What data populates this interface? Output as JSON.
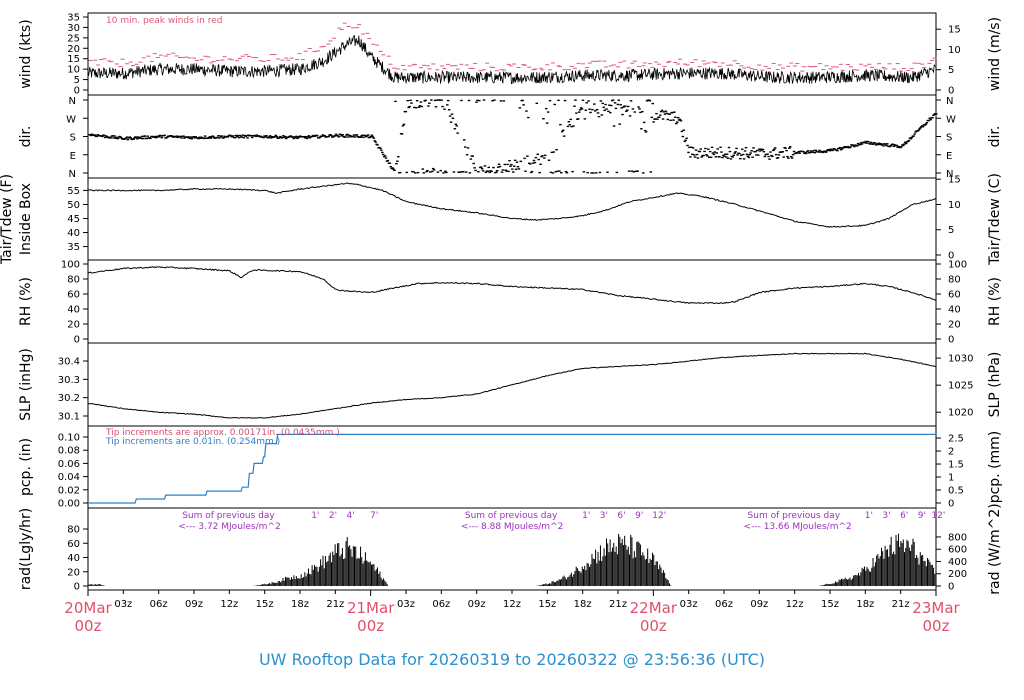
{
  "title": "UW Rooftop Data for 20260319  to  20260322 @ 23:56:36  (UTC)",
  "x_axis": {
    "tick_labels": [
      "03z",
      "06z",
      "09z",
      "12z",
      "15z",
      "18z",
      "21z",
      "03z",
      "06z",
      "09z",
      "12z",
      "15z",
      "18z",
      "21z",
      "03z",
      "06z",
      "09z",
      "12z",
      "15z",
      "18z",
      "21z"
    ],
    "tick_hours": [
      3,
      6,
      9,
      12,
      15,
      18,
      21,
      27,
      30,
      33,
      36,
      39,
      42,
      45,
      51,
      54,
      57,
      60,
      63,
      66,
      69
    ],
    "date_labels": [
      {
        "date": "20Mar",
        "time": "00z",
        "hour": 0
      },
      {
        "date": "21Mar",
        "time": "00z",
        "hour": 24
      },
      {
        "date": "22Mar",
        "time": "00z",
        "hour": 48
      },
      {
        "date": "23Mar",
        "time": "00z",
        "hour": 72
      }
    ]
  },
  "colors": {
    "peak_wind": "#e05a78",
    "precip_line": "#2a80c8",
    "precip_note_in": "#d05070",
    "annotation": "#a030c0",
    "date": "#e0506a",
    "title": "#2a90d0"
  },
  "panels": {
    "wind": {
      "ylabel_left": "wind (kts)",
      "ylabel_right": "wind (m/s)",
      "left_ticks": [
        "0",
        "5",
        "10",
        "15",
        "20",
        "25",
        "30",
        "35"
      ],
      "right_ticks": [
        "0",
        "5",
        "10",
        "15"
      ],
      "note": "10 min. peak winds in red"
    },
    "dir": {
      "ylabel_left": "dir.",
      "ylabel_right": "dir.",
      "ticks": [
        "N",
        "W",
        "S",
        "E",
        "N"
      ]
    },
    "temp": {
      "ylabel_left_1": "Tair/Tdew (F)",
      "ylabel_left_2": "Inside Box",
      "ylabel_right": "Tair/Tdew (C)",
      "left_ticks": [
        "35",
        "40",
        "45",
        "50",
        "55"
      ],
      "right_ticks": [
        "0",
        "5",
        "10",
        "15"
      ]
    },
    "rh": {
      "ylabel_left": "RH (%)",
      "ylabel_right": "RH (%)",
      "left_ticks": [
        "0",
        "20",
        "40",
        "60",
        "80",
        "100"
      ],
      "right_ticks": [
        "0",
        "20",
        "40",
        "60",
        "80",
        "100"
      ]
    },
    "slp": {
      "ylabel_left": "SLP (inHg)",
      "ylabel_right": "SLP (hPa)",
      "left_ticks": [
        "30.1",
        "30.2",
        "30.3",
        "30.4"
      ],
      "right_ticks": [
        "1020",
        "1025",
        "1030"
      ]
    },
    "pcp": {
      "ylabel_left": "pcp. (in)",
      "ylabel_right": "pcp. (mm)",
      "left_ticks": [
        "0.00",
        "0.02",
        "0.04",
        "0.06",
        "0.08",
        "0.10"
      ],
      "right_ticks": [
        "0",
        "0.5",
        "1",
        "1.5",
        "2",
        "2.5"
      ],
      "note_1": "Tip increments are approx. 0.00171in. (0.0435mm.)",
      "note_2": "Tip increments are 0.01in. (0.254mm.)"
    },
    "rad": {
      "ylabel_left": "rad(Lgly/hr)",
      "ylabel_right": "rad (W/m^2)",
      "left_ticks": [
        "0",
        "20",
        "40",
        "60",
        "80"
      ],
      "right_ticks": [
        "0",
        "200",
        "400",
        "600",
        "800"
      ],
      "sums": [
        {
          "label": "Sum of previous day",
          "value": "<--- 3.72 MJoules/m^2",
          "hour": 8
        },
        {
          "label": "Sum of previous day",
          "value": "<--- 8.88 MJoules/m^2",
          "hour": 32
        },
        {
          "label": "Sum of previous day",
          "value": "<--- 13.66 MJoules/m^2",
          "hour": 56
        }
      ],
      "hour_markers": [
        {
          "day": 0,
          "labels": [
            "1",
            "2",
            "4",
            "7"
          ],
          "hours": [
            19.3,
            20.8,
            22.3,
            24.3
          ]
        },
        {
          "day": 1,
          "labels": [
            "1",
            "3",
            "6",
            "9",
            "12"
          ],
          "hours": [
            42.3,
            43.8,
            45.3,
            46.8,
            48.5
          ]
        },
        {
          "day": 2,
          "labels": [
            "1",
            "3",
            "6",
            "9",
            "12"
          ],
          "hours": [
            66.3,
            67.8,
            69.3,
            70.8,
            72.2
          ]
        }
      ]
    }
  },
  "chart_data": [
    {
      "type": "line",
      "name": "wind",
      "x_unit": "hours since 20Mar 00z",
      "ylim": [
        0,
        35
      ],
      "x": [
        0,
        3,
        6,
        9,
        12,
        15,
        18,
        20,
        21,
        22,
        23,
        24,
        26,
        30,
        34,
        38,
        42,
        46,
        50,
        54,
        58,
        62,
        66,
        70,
        72
      ],
      "series": [
        {
          "name": "wind",
          "values": [
            8,
            8,
            10,
            10,
            9,
            9,
            10,
            14,
            18,
            22,
            24,
            16,
            6,
            6,
            6,
            6,
            7,
            7,
            8,
            8,
            6,
            6,
            7,
            6,
            10
          ]
        },
        {
          "name": "10 min. peak winds",
          "values": [
            13,
            13,
            16,
            15,
            15,
            15,
            16,
            22,
            28,
            32,
            30,
            22,
            11,
            11,
            11,
            11,
            12,
            12,
            13,
            13,
            11,
            11,
            11,
            11,
            15
          ]
        }
      ]
    },
    {
      "type": "scatter",
      "name": "dir.",
      "x_unit": "hours since 20Mar 00z",
      "y_unit": "degrees",
      "x": [
        0,
        3,
        6,
        9,
        12,
        15,
        18,
        21,
        24,
        26,
        27,
        30,
        33,
        36,
        39,
        42,
        45,
        47,
        50,
        51,
        54,
        57,
        60,
        63,
        66,
        69,
        72
      ],
      "values": [
        190,
        170,
        180,
        175,
        180,
        180,
        175,
        185,
        180,
        0,
        350,
        355,
        5,
        40,
        80,
        330,
        320,
        300,
        270,
        100,
        100,
        95,
        100,
        110,
        150,
        130,
        300
      ]
    },
    {
      "type": "line",
      "name": "Tair/Tdew (F)",
      "x_unit": "hours since 20Mar 00z",
      "ylim": [
        32,
        58
      ],
      "x": [
        0,
        3,
        6,
        9,
        12,
        15,
        16,
        18,
        20,
        22,
        23,
        25,
        27,
        30,
        33,
        36,
        38,
        40,
        42,
        44,
        46,
        48,
        50,
        52,
        55,
        58,
        60,
        63,
        66,
        68,
        70,
        72
      ],
      "values": [
        55,
        55,
        55,
        55.5,
        55.5,
        55,
        54,
        55.5,
        56.5,
        57.5,
        57,
        55,
        51,
        48.5,
        47,
        45,
        44.5,
        45,
        46,
        48,
        51,
        52.5,
        54,
        53,
        50,
        46.5,
        44,
        42,
        42.5,
        45,
        50,
        52
      ]
    },
    {
      "type": "line",
      "name": "RH (%)",
      "x_unit": "hours since 20Mar 00z",
      "ylim": [
        0,
        100
      ],
      "x": [
        0,
        3,
        6,
        9,
        12,
        13,
        14,
        18,
        20,
        21,
        22,
        24,
        26,
        28,
        30,
        33,
        36,
        39,
        42,
        45,
        48,
        51,
        54,
        55,
        57,
        60,
        63,
        66,
        68,
        70,
        72
      ],
      "values": [
        88,
        94,
        96,
        94,
        91,
        82,
        92,
        90,
        80,
        66,
        64,
        62,
        68,
        74,
        75,
        74,
        70,
        68,
        66,
        58,
        53,
        48,
        48,
        50,
        62,
        68,
        70,
        74,
        70,
        62,
        52
      ]
    },
    {
      "type": "line",
      "name": "SLP (inHg)",
      "x_unit": "hours since 20Mar 00z",
      "ylim": [
        30.075,
        30.46
      ],
      "x": [
        0,
        3,
        6,
        9,
        12,
        15,
        18,
        21,
        24,
        27,
        30,
        33,
        36,
        39,
        42,
        45,
        48,
        51,
        54,
        57,
        60,
        63,
        66,
        69,
        72
      ],
      "values": [
        30.17,
        30.14,
        30.12,
        30.11,
        30.09,
        30.09,
        30.11,
        30.14,
        30.17,
        30.19,
        30.2,
        30.22,
        30.27,
        30.32,
        30.36,
        30.37,
        30.38,
        30.4,
        30.42,
        30.43,
        30.44,
        30.44,
        30.44,
        30.41,
        30.37
      ]
    },
    {
      "type": "line",
      "name": "pcp. (in)",
      "x_unit": "hours since 20Mar 00z",
      "ylim": [
        0,
        0.1
      ],
      "x": [
        0,
        4,
        4.1,
        6.5,
        6.6,
        10,
        10.1,
        13,
        13.1,
        13.6,
        13.7,
        14,
        14.1,
        14.8,
        14.9,
        15,
        15.1,
        16,
        16.1,
        72
      ],
      "values": [
        0,
        0,
        0.006,
        0.006,
        0.012,
        0.012,
        0.018,
        0.018,
        0.024,
        0.024,
        0.045,
        0.045,
        0.06,
        0.06,
        0.07,
        0.07,
        0.09,
        0.09,
        0.104,
        0.104
      ]
    },
    {
      "type": "area",
      "name": "rad (Lgly/hr)",
      "x_unit": "hours since 20Mar 00z",
      "ylim": [
        0,
        80
      ],
      "x": [
        0,
        1,
        1.5,
        14,
        15,
        16,
        17,
        18,
        19,
        20,
        21,
        22,
        23,
        24,
        25,
        25.5,
        38,
        39,
        40,
        41,
        42,
        43,
        44,
        45,
        46,
        47,
        48,
        49,
        49.5,
        62,
        63,
        64,
        65,
        66,
        67,
        68,
        69,
        70,
        71,
        72
      ],
      "values": [
        3,
        3,
        0,
        0,
        3,
        7,
        14,
        18,
        28,
        42,
        58,
        66,
        55,
        40,
        15,
        0,
        0,
        4,
        10,
        20,
        36,
        52,
        66,
        72,
        70,
        58,
        45,
        18,
        0,
        0,
        4,
        10,
        16,
        28,
        46,
        66,
        74,
        66,
        44,
        22
      ]
    }
  ]
}
